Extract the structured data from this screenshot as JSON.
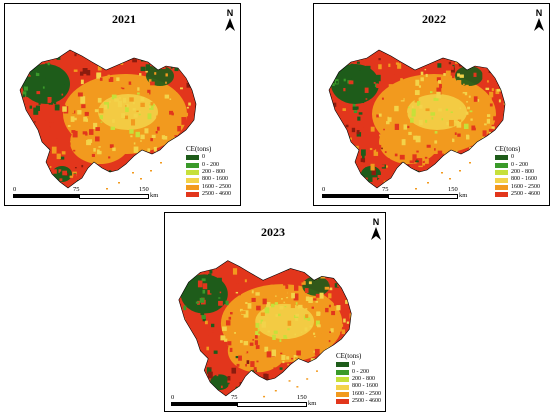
{
  "legend": {
    "title": "CE(tons)",
    "classes": [
      {
        "label": "0",
        "color": "#1e5c1a"
      },
      {
        "label": "0 - 200",
        "color": "#3a9a2a"
      },
      {
        "label": "200 - 800",
        "color": "#c6e03a"
      },
      {
        "label": "800 - 1600",
        "color": "#f3d34a"
      },
      {
        "label": "1600 - 2500",
        "color": "#f29a1e"
      },
      {
        "label": "2500 - 4600",
        "color": "#e2361c"
      }
    ]
  },
  "north_arrow_label": "N",
  "scale": {
    "ticks": [
      "0",
      "75",
      "150"
    ],
    "unit": "km"
  },
  "panels": [
    {
      "year": "2021"
    },
    {
      "year": "2022"
    },
    {
      "year": "2023"
    }
  ],
  "colors": {
    "boundary": "#000000",
    "dark_red": "#8a1c0e"
  }
}
